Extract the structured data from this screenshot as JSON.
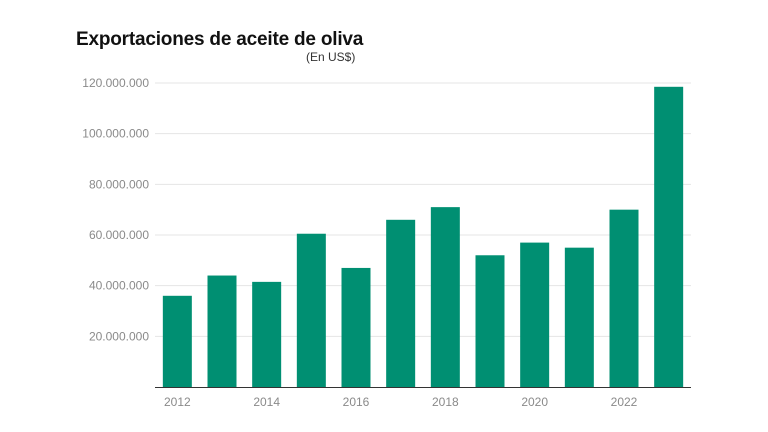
{
  "title": "Exportaciones de aceite de oliva",
  "subtitle": "(En US$)",
  "colors": {
    "bar": "#008f72",
    "grid": "#e4e4e4",
    "axis": "#333333",
    "tick": "#8a8a8a"
  },
  "chart_data": {
    "type": "bar",
    "title": "Exportaciones de aceite de oliva",
    "subtitle": "(En US$)",
    "xlabel": "",
    "ylabel": "",
    "categories": [
      "2012",
      "2013",
      "2014",
      "2015",
      "2016",
      "2017",
      "2018",
      "2019",
      "2020",
      "2021",
      "2022",
      "2023"
    ],
    "x_tick_labels": [
      "2012",
      "2014",
      "2016",
      "2018",
      "2020",
      "2022"
    ],
    "y_tick_labels": [
      "20.000.000",
      "40.000.000",
      "60.000.000",
      "80.000.000",
      "100.000.000",
      "120.000.000"
    ],
    "values": [
      36000000,
      44000000,
      41500000,
      60500000,
      47000000,
      66000000,
      71000000,
      52000000,
      57000000,
      55000000,
      70000000,
      118500000
    ],
    "ylim": [
      0,
      120000000
    ],
    "grid": true,
    "legend": "none"
  }
}
